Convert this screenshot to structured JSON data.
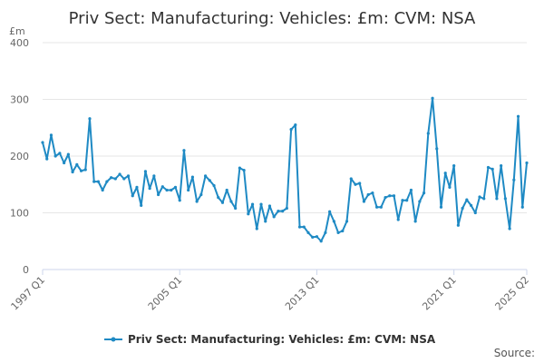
{
  "chart_data": {
    "type": "line",
    "title": "Priv Sect: Manufacturing: Vehicles: £m: CVM: NSA",
    "unit_label": "£m",
    "ylim": [
      0,
      400
    ],
    "y_ticks": [
      0,
      100,
      200,
      300,
      400
    ],
    "x_tick_labels": [
      "1997 Q1",
      "2005 Q1",
      "2013 Q1",
      "2021 Q1",
      "2025 Q2"
    ],
    "x_tick_indices": [
      0,
      32,
      64,
      96,
      113
    ],
    "grid": true,
    "legend_position": "bottom",
    "source_label": "Source:",
    "series": [
      {
        "name": "Priv Sect: Manufacturing: Vehicles: £m: CVM: NSA",
        "color": "#1f8ac4",
        "values": [
          224,
          195,
          237,
          200,
          205,
          188,
          203,
          172,
          185,
          174,
          176,
          266,
          155,
          155,
          140,
          155,
          162,
          160,
          168,
          160,
          165,
          130,
          145,
          113,
          173,
          143,
          165,
          132,
          146,
          140,
          140,
          145,
          122,
          210,
          140,
          163,
          120,
          132,
          165,
          157,
          148,
          127,
          118,
          140,
          120,
          108,
          179,
          175,
          98,
          115,
          72,
          115,
          85,
          112,
          93,
          103,
          103,
          108,
          247,
          255,
          75,
          75,
          65,
          57,
          58,
          50,
          65,
          102,
          85,
          65,
          68,
          85,
          160,
          150,
          152,
          120,
          132,
          135,
          110,
          110,
          127,
          130,
          130,
          88,
          122,
          122,
          140,
          85,
          120,
          135,
          240,
          302,
          213,
          110,
          170,
          145,
          183,
          78,
          108,
          123,
          113,
          100,
          128,
          125,
          180,
          177,
          125,
          183,
          125,
          72,
          158,
          270,
          110,
          188
        ]
      }
    ]
  }
}
